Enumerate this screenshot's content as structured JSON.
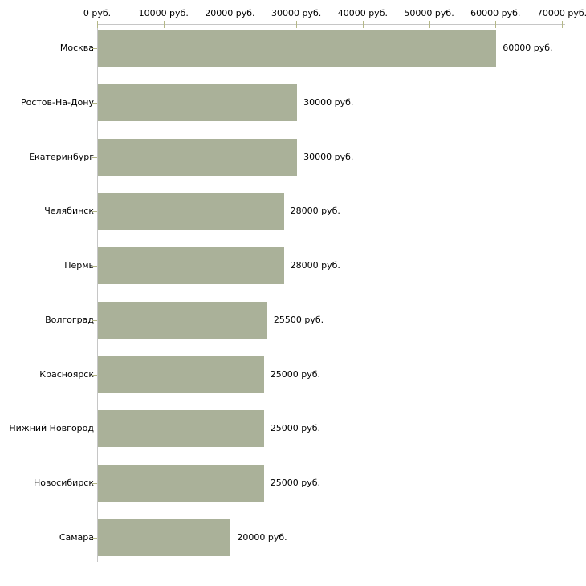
{
  "chart_data": {
    "type": "bar",
    "orientation": "horizontal",
    "title": "",
    "xlabel": "",
    "ylabel": "",
    "unit": "руб.",
    "categories": [
      "Москва",
      "Ростов-На-Дону",
      "Екатеринбург",
      "Челябинск",
      "Пермь",
      "Волгоград",
      "Красноярск",
      "Нижний Новгород",
      "Новосибирск",
      "Самара"
    ],
    "values": [
      60000,
      30000,
      30000,
      28000,
      28000,
      25500,
      25000,
      25000,
      25000,
      20000
    ],
    "value_labels": [
      "60000 руб.",
      "30000 руб.",
      "30000 руб.",
      "28000 руб.",
      "28000 руб.",
      "25500 руб.",
      "25000 руб.",
      "25000 руб.",
      "25000 руб.",
      "20000 руб."
    ],
    "x_ticks": [
      0,
      10000,
      20000,
      30000,
      40000,
      50000,
      60000,
      70000
    ],
    "x_tick_labels": [
      "0 руб.",
      "10000 руб.",
      "20000 руб.",
      "30000 руб.",
      "40000 руб.",
      "50000 руб.",
      "60000 руб.",
      "70000 руб."
    ],
    "xlim": [
      0,
      70000
    ],
    "grid": false,
    "legend": null,
    "axis_position": "top",
    "colors": {
      "bar": "#aab199",
      "axis_line": "#c6c6c6",
      "tick_mark": "#b4b786",
      "text": "#000000",
      "background": "#ffffff"
    }
  }
}
